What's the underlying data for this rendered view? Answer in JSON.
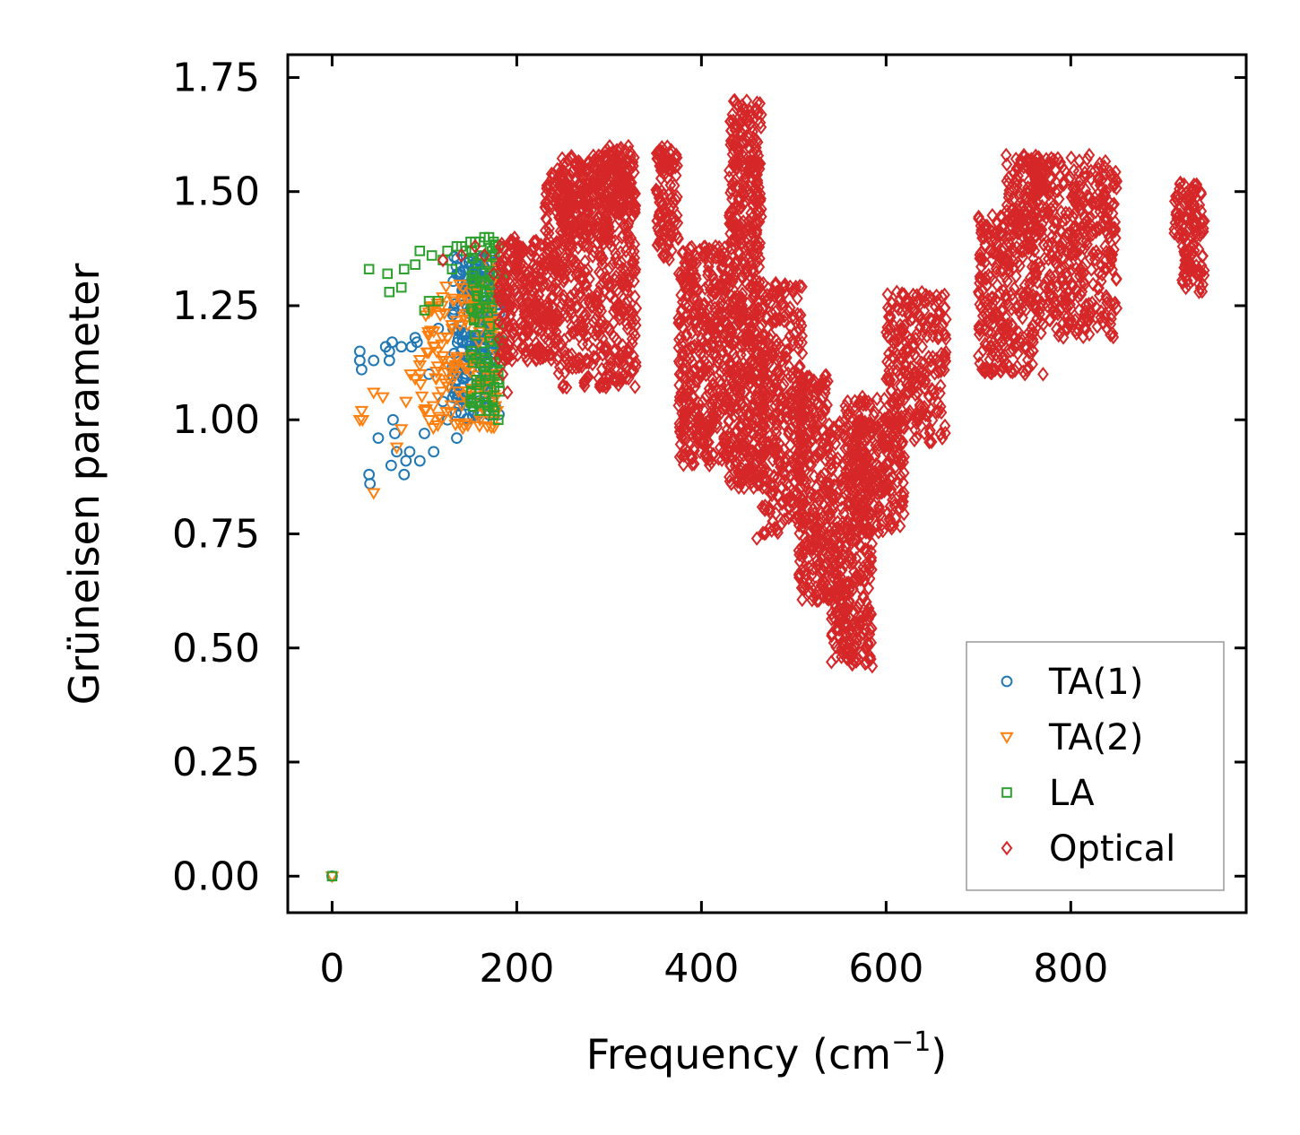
{
  "chart_data": {
    "type": "scatter",
    "title": "",
    "xlabel": "Frequency (cm",
    "xlabel_sup": "−1",
    "xlabel_end": ")",
    "ylabel": "Grüneisen parameter",
    "xlim": [
      -48,
      990
    ],
    "ylim": [
      -0.08,
      1.8
    ],
    "xticks": [
      0,
      200,
      400,
      600,
      800
    ],
    "xtick_labels": [
      "0",
      "200",
      "400",
      "600",
      "800"
    ],
    "yticks": [
      0.0,
      0.25,
      0.5,
      0.75,
      1.0,
      1.25,
      1.5,
      1.75
    ],
    "ytick_labels": [
      "0.00",
      "0.25",
      "0.50",
      "0.75",
      "1.00",
      "1.25",
      "1.50",
      "1.75"
    ],
    "grid": false,
    "legend_position": "bottom-right",
    "series": [
      {
        "name": "TA(1)",
        "marker": "circle",
        "color": "#1f77b4",
        "points": [
          [
            0,
            0
          ],
          [
            30,
            1.15
          ],
          [
            30,
            1.13
          ],
          [
            32,
            1.11
          ],
          [
            40,
            0.88
          ],
          [
            41,
            0.86
          ],
          [
            45,
            1.13
          ],
          [
            50,
            0.96
          ],
          [
            58,
            1.16
          ],
          [
            62,
            1.15
          ],
          [
            62,
            1.13
          ],
          [
            64,
            0.9
          ],
          [
            65,
            1.17
          ],
          [
            66,
            1.0
          ],
          [
            68,
            0.97
          ],
          [
            70,
            0.93
          ],
          [
            75,
            1.16
          ],
          [
            78,
            0.88
          ],
          [
            80,
            0.91
          ],
          [
            84,
            0.93
          ],
          [
            86,
            1.16
          ],
          [
            90,
            1.18
          ],
          [
            92,
            1.17
          ],
          [
            95,
            0.91
          ],
          [
            100,
            0.97
          ],
          [
            105,
            1.1
          ],
          [
            110,
            0.93
          ],
          [
            115,
            1.2
          ],
          [
            120,
            1.04
          ],
          [
            125,
            1.0
          ],
          [
            130,
            1.07
          ],
          [
            135,
            0.96
          ],
          [
            140,
            1.15
          ],
          [
            145,
            1.1
          ],
          [
            150,
            1.26
          ],
          [
            155,
            1.3
          ],
          [
            160,
            1.2
          ],
          [
            165,
            1.08
          ],
          [
            170,
            1.34
          ],
          [
            175,
            1.28
          ],
          [
            178,
            1.22
          ],
          [
            182,
            1.16
          ]
        ],
        "clusters": [
          [
            130,
            182,
            1.0,
            1.36,
            220
          ]
        ]
      },
      {
        "name": "TA(2)",
        "marker": "triangle-down",
        "color": "#ff7f0e",
        "points": [
          [
            0,
            0
          ],
          [
            30,
            1.0
          ],
          [
            32,
            1.02
          ],
          [
            33,
            1.0
          ],
          [
            45,
            1.06
          ],
          [
            45,
            0.84
          ],
          [
            55,
            1.05
          ],
          [
            70,
            0.94
          ],
          [
            75,
            0.98
          ],
          [
            80,
            1.04
          ],
          [
            85,
            1.1
          ],
          [
            90,
            1.09
          ],
          [
            95,
            1.12
          ],
          [
            100,
            1.02
          ],
          [
            105,
            1.0
          ],
          [
            110,
            1.16
          ],
          [
            115,
            1.05
          ],
          [
            120,
            1.14
          ],
          [
            125,
            1.18
          ],
          [
            130,
            1.2
          ],
          [
            135,
            1.12
          ],
          [
            140,
            1.26
          ],
          [
            145,
            1.22
          ],
          [
            150,
            1.28
          ],
          [
            160,
            1.3
          ],
          [
            170,
            1.34
          ],
          [
            180,
            1.33
          ]
        ],
        "clusters": [
          [
            95,
            182,
            0.98,
            1.3,
            140
          ]
        ]
      },
      {
        "name": "LA",
        "marker": "square",
        "color": "#2ca02c",
        "points": [
          [
            0,
            0
          ],
          [
            40,
            1.33
          ],
          [
            60,
            1.32
          ],
          [
            62,
            1.28
          ],
          [
            75,
            1.29
          ],
          [
            78,
            1.33
          ],
          [
            90,
            1.34
          ],
          [
            95,
            1.37
          ],
          [
            100,
            1.24
          ],
          [
            105,
            1.26
          ],
          [
            108,
            1.36
          ],
          [
            115,
            1.26
          ],
          [
            120,
            1.35
          ],
          [
            125,
            1.37
          ],
          [
            130,
            1.33
          ],
          [
            135,
            1.38
          ],
          [
            140,
            1.38
          ],
          [
            145,
            1.37
          ],
          [
            150,
            1.39
          ],
          [
            155,
            1.39
          ],
          [
            160,
            1.39
          ],
          [
            165,
            1.4
          ],
          [
            170,
            1.4
          ],
          [
            175,
            1.39
          ],
          [
            180,
            1.38
          ],
          [
            150,
            1.04
          ],
          [
            160,
            1.02
          ],
          [
            170,
            1.02
          ],
          [
            175,
            1.01
          ],
          [
            180,
            1.0
          ],
          [
            165,
            1.05
          ]
        ],
        "clusters": [
          [
            150,
            185,
            1.02,
            1.4,
            90
          ]
        ]
      },
      {
        "name": "Optical",
        "marker": "diamond",
        "color": "#d62728",
        "points": [
          [
            120,
            1.35
          ],
          [
            140,
            1.36
          ],
          [
            155,
            1.38
          ],
          [
            165,
            1.36
          ],
          [
            175,
            1.32
          ],
          [
            185,
            1.1
          ],
          [
            190,
            1.06
          ],
          [
            436,
            1.7
          ],
          [
            460,
            1.68
          ],
          [
            440,
            0.87
          ],
          [
            460,
            0.74
          ],
          [
            585,
            0.46
          ],
          [
            700,
            1.28
          ],
          [
            730,
            1.58
          ],
          [
            770,
            1.1
          ],
          [
            820,
            1.58
          ],
          [
            830,
            1.55
          ]
        ],
        "clusters": [
          [
            180,
            245,
            1.13,
            1.4,
            320
          ],
          [
            245,
            330,
            1.07,
            1.58,
            520
          ],
          [
            230,
            300,
            1.4,
            1.55,
            160
          ],
          [
            295,
            325,
            1.45,
            1.6,
            90
          ],
          [
            350,
            375,
            1.35,
            1.6,
            110
          ],
          [
            375,
            430,
            0.9,
            1.38,
            420
          ],
          [
            430,
            465,
            1.2,
            1.7,
            320
          ],
          [
            430,
            470,
            0.85,
            1.2,
            260
          ],
          [
            465,
            510,
            0.75,
            1.3,
            320
          ],
          [
            505,
            540,
            0.6,
            1.1,
            280
          ],
          [
            540,
            585,
            0.46,
            1.0,
            360
          ],
          [
            555,
            620,
            0.75,
            1.05,
            260
          ],
          [
            600,
            665,
            0.95,
            1.28,
            260
          ],
          [
            700,
            760,
            1.1,
            1.45,
            280
          ],
          [
            730,
            770,
            1.4,
            1.58,
            120
          ],
          [
            760,
            850,
            1.18,
            1.58,
            420
          ],
          [
            920,
            945,
            1.28,
            1.4,
            60
          ],
          [
            910,
            945,
            1.4,
            1.52,
            80
          ]
        ]
      }
    ]
  }
}
